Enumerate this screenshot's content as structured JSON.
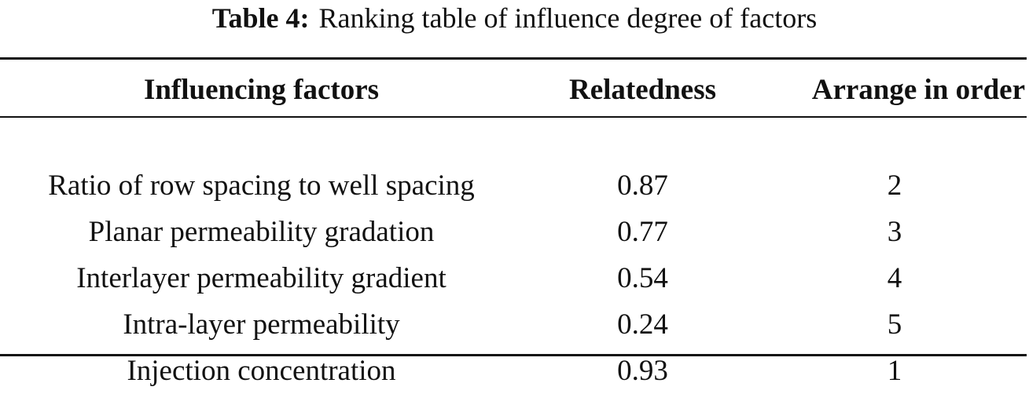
{
  "caption": {
    "label": "Table 4:",
    "title": "Ranking table of influence degree of factors"
  },
  "table": {
    "headers": [
      "Influencing factors",
      "Relatedness",
      "Arrange in order"
    ],
    "rows": [
      [
        "Ratio of row spacing to well spacing",
        "0.87",
        "2"
      ],
      [
        "Planar permeability gradation",
        "0.77",
        "3"
      ],
      [
        "Interlayer permeability gradient",
        "0.54",
        "4"
      ],
      [
        "Intra-layer permeability",
        "0.24",
        "5"
      ],
      [
        "Injection concentration",
        "0.93",
        "1"
      ]
    ]
  }
}
